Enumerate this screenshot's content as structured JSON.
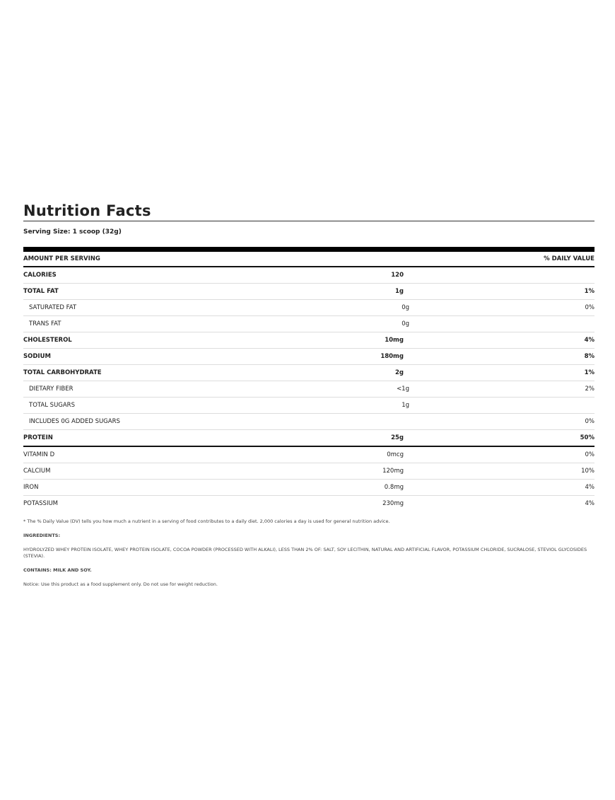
{
  "title": "Nutrition Facts",
  "serving": "Serving Size: 1 scoop (32g)",
  "header": {
    "amount": "AMOUNT PER SERVING",
    "dv": "% DAILY VALUE"
  },
  "rows": [
    {
      "name": "CALORIES",
      "amount": "120",
      "dv": "",
      "bold": true
    },
    {
      "name": "TOTAL FAT",
      "amount": "1g",
      "dv": "1%",
      "bold": true
    },
    {
      "name": "SATURATED FAT",
      "amount": "0g",
      "dv": "0%",
      "indent": true
    },
    {
      "name": "TRANS FAT",
      "amount": "0g",
      "dv": "",
      "indent": true
    },
    {
      "name": "CHOLESTEROL",
      "amount": "10mg",
      "dv": "4%",
      "bold": true
    },
    {
      "name": "SODIUM",
      "amount": "180mg",
      "dv": "8%",
      "bold": true
    },
    {
      "name": "TOTAL CARBOHYDRATE",
      "amount": "2g",
      "dv": "1%",
      "bold": true
    },
    {
      "name": "DIETARY FIBER",
      "amount": "<1g",
      "dv": "2%",
      "indent": true
    },
    {
      "name": "TOTAL SUGARS",
      "amount": "1g",
      "dv": "",
      "indent": true
    },
    {
      "name": "INCLUDES 0G ADDED SUGARS",
      "amount": "",
      "dv": "0%",
      "indent": true
    },
    {
      "name": "PROTEIN",
      "amount": "25g",
      "dv": "50%",
      "bold": true,
      "sep": true
    },
    {
      "name": "VITAMIN D",
      "amount": "0mcg",
      "dv": "0%"
    },
    {
      "name": "CALCIUM",
      "amount": "120mg",
      "dv": "10%"
    },
    {
      "name": "IRON",
      "amount": "0.8mg",
      "dv": "4%"
    },
    {
      "name": "POTASSIUM",
      "amount": "230mg",
      "dv": "4%",
      "last": true
    }
  ],
  "notes": {
    "dv": "* The % Daily Value (DV) tells you how much a nutrient in a serving of food contributes to a daily diet. 2,000 calories a day is used for general nutrition advice.",
    "ingredients_label": "INGREDIENTS:",
    "ingredients": "HYDROLYZED WHEY PROTEIN ISOLATE, WHEY PROTEIN ISOLATE, COCOA POWDER (PROCESSED WITH ALKALI), LESS THAN 2% OF: SALT, SOY LECITHIN, NATURAL AND ARTIFICIAL FLAVOR, POTASSIUM CHLORIDE, SUCRALOSE, STEVIOL GLYCOSIDES (STEVIA).",
    "contains": "CONTAINS: MILK AND SOY.",
    "notice": "Notice: Use this product as a food supplement only. Do not use for weight reduction."
  }
}
